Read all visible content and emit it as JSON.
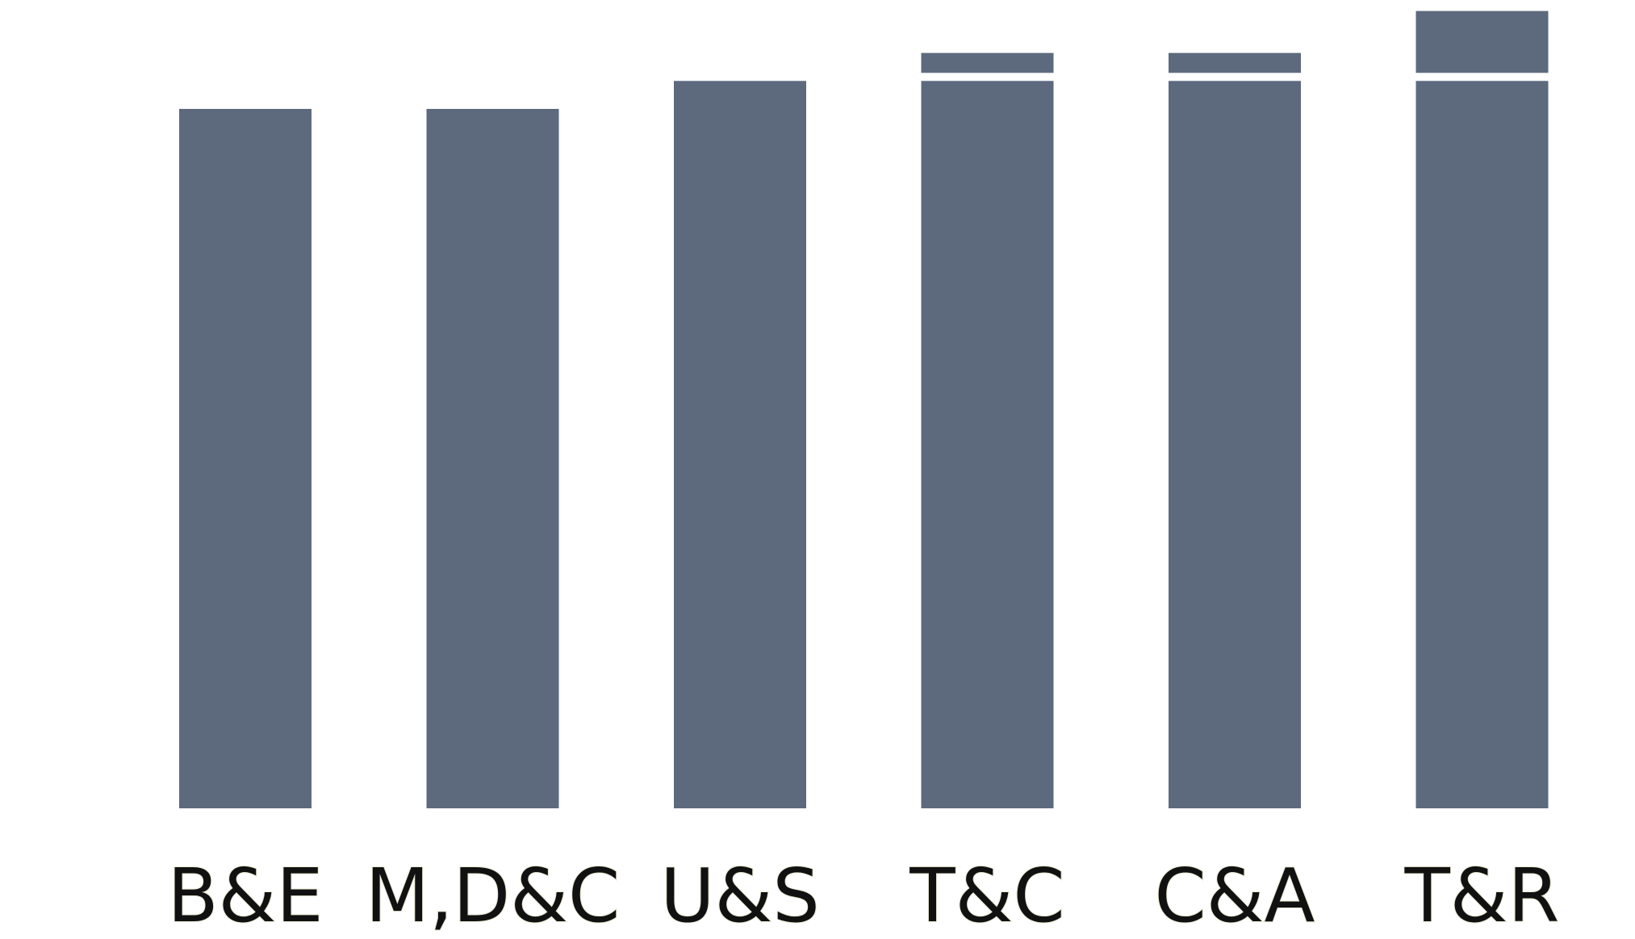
{
  "chart_data": {
    "type": "bar",
    "categories": [
      "B&E",
      "M,D&C",
      "U&S",
      "T&C",
      "C&A",
      "T&R"
    ],
    "series": [
      {
        "values": [
          100,
          100,
          104,
          104,
          104,
          104
        ]
      },
      {
        "values": [
          0,
          0,
          0,
          4,
          4,
          10
        ]
      }
    ],
    "stacked": true,
    "title": "",
    "xlabel": "",
    "ylabel": "",
    "ylim": [
      0,
      115
    ],
    "grid": false,
    "legend": "none",
    "colors": {
      "bar": "#5d6a7e",
      "segment_gap": "#ffffff"
    }
  }
}
